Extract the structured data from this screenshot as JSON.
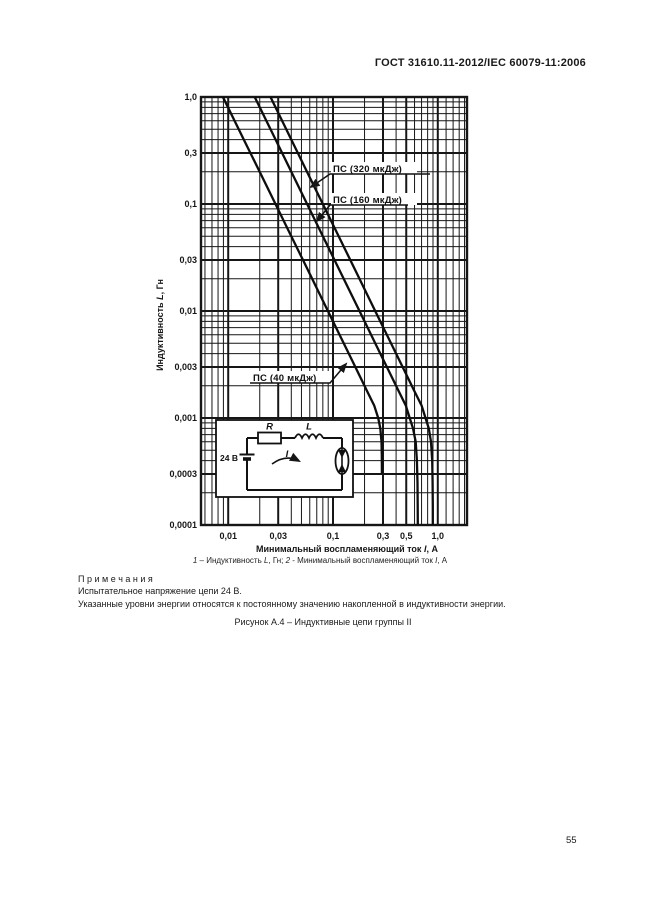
{
  "header": {
    "title": "ГОСТ 31610.11-2012/IEC 60079-11:2006"
  },
  "chart_data": {
    "type": "line",
    "scale": "log-log",
    "grid": "dense log graph paper, black on white",
    "x_axis": {
      "scale": "log",
      "min": 0.0055,
      "max": 1.9,
      "label_parts": [
        "Минимальный воспламеняющий ток ",
        "I",
        ", А"
      ],
      "ticks": [
        {
          "v": 0.01,
          "label": "0,01"
        },
        {
          "v": 0.03,
          "label": "0,03"
        },
        {
          "v": 0.1,
          "label": "0,1"
        },
        {
          "v": 0.3,
          "label": "0,3"
        },
        {
          "v": 0.5,
          "label": "0,5"
        },
        {
          "v": 1.0,
          "label": "1,0"
        }
      ]
    },
    "y_axis": {
      "scale": "log",
      "min": 0.0001,
      "max": 1.0,
      "label_parts": [
        "Индуктивность ",
        "L",
        ", Гн"
      ],
      "ticks": [
        {
          "v": 1.0,
          "label": "1,0"
        },
        {
          "v": 0.3,
          "label": "0,3"
        },
        {
          "v": 0.1,
          "label": "0,1"
        },
        {
          "v": 0.03,
          "label": "0,03"
        },
        {
          "v": 0.01,
          "label": "0,01"
        },
        {
          "v": 0.003,
          "label": "0,003"
        },
        {
          "v": 0.001,
          "label": "0,001"
        },
        {
          "v": 0.0003,
          "label": "0,0003"
        },
        {
          "v": 0.0001,
          "label": "0,0001"
        }
      ]
    },
    "series": [
      {
        "name": "ПС (40 мкДж)",
        "energy_uJ": 40,
        "points": [
          [
            0.0089,
            1.0
          ],
          [
            0.0141,
            0.4
          ],
          [
            0.0231,
            0.15
          ],
          [
            0.0365,
            0.06
          ],
          [
            0.0566,
            0.025
          ],
          [
            0.0894,
            0.01
          ],
          [
            0.1414,
            0.004
          ],
          [
            0.2108,
            0.0018
          ],
          [
            0.248,
            0.0013
          ],
          [
            0.27,
            0.001
          ],
          [
            0.283,
            0.0008
          ],
          [
            0.29,
            0.0006
          ],
          [
            0.2925,
            0.00045
          ],
          [
            0.293,
            0.0003
          ]
        ]
      },
      {
        "name": "ПС (160 мкДж)",
        "energy_uJ": 160,
        "points": [
          [
            0.0179,
            1.0
          ],
          [
            0.0283,
            0.4
          ],
          [
            0.0462,
            0.15
          ],
          [
            0.073,
            0.06
          ],
          [
            0.1131,
            0.025
          ],
          [
            0.1789,
            0.01
          ],
          [
            0.2828,
            0.004
          ],
          [
            0.4216,
            0.0018
          ],
          [
            0.496,
            0.0013
          ],
          [
            0.54,
            0.001
          ],
          [
            0.58,
            0.0008
          ],
          [
            0.615,
            0.0006
          ],
          [
            0.632,
            0.0004
          ],
          [
            0.64,
            0.00025
          ],
          [
            0.643,
            0.00015
          ],
          [
            0.644,
            0.0001
          ]
        ]
      },
      {
        "name": "ПС (320 мкДж)",
        "energy_uJ": 320,
        "points": [
          [
            0.0253,
            1.0
          ],
          [
            0.04,
            0.4
          ],
          [
            0.0653,
            0.15
          ],
          [
            0.1033,
            0.06
          ],
          [
            0.16,
            0.025
          ],
          [
            0.253,
            0.01
          ],
          [
            0.4,
            0.004
          ],
          [
            0.596,
            0.0018
          ],
          [
            0.702,
            0.0013
          ],
          [
            0.764,
            0.001
          ],
          [
            0.82,
            0.0008
          ],
          [
            0.862,
            0.0006
          ],
          [
            0.885,
            0.0004
          ],
          [
            0.893,
            0.00025
          ],
          [
            0.896,
            0.00015
          ],
          [
            0.897,
            0.0001
          ]
        ]
      }
    ],
    "inset_circuit": {
      "voltage": "24 В",
      "resistor": "R",
      "inductor": "L",
      "current": "I"
    }
  },
  "caption": {
    "parts": [
      "1",
      " – Индуктивность ",
      "L",
      ", Гн; ",
      "2",
      " -  Минимальный воспламеняющий ток ",
      "I",
      ", А"
    ]
  },
  "notes": {
    "heading": "П р и м е ч а н и я",
    "lines": [
      "Испытательное напряжение цепи 24 В.",
      "Указанные уровни энергии относятся к постоянному значению накопленной в индуктивности энергии."
    ]
  },
  "figure_caption": "Рисунок А.4 – Индуктивные цепи группы II",
  "page_number": "55"
}
